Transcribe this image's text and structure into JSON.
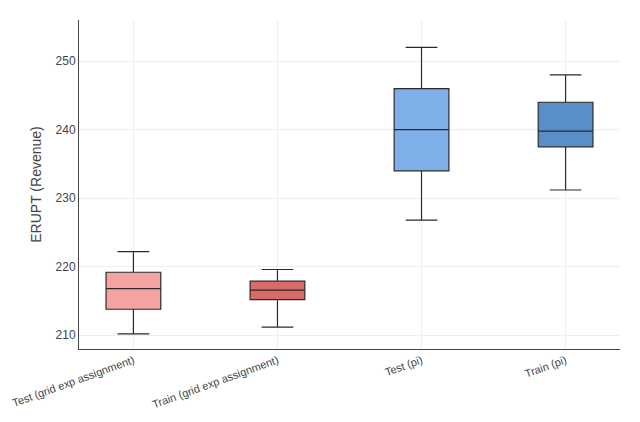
{
  "chart_data": {
    "type": "box",
    "categories": [
      "Test (grid exp assignment)",
      "Train (grid exp assignment)",
      "Test (pi)",
      "Train (pi)"
    ],
    "whisker_low": [
      210.2,
      211.2,
      226.8,
      231.2
    ],
    "q1": [
      213.8,
      215.2,
      234.0,
      237.5
    ],
    "median": [
      216.8,
      216.6,
      240.0,
      239.8
    ],
    "q3": [
      219.2,
      217.9,
      246.0,
      244.0
    ],
    "whisker_high": [
      222.2,
      219.6,
      252.0,
      248.0
    ],
    "colors": [
      "#F4A3A0",
      "#D96A6A",
      "#7FAFE8",
      "#5A8EC8"
    ],
    "ylabel": "ERUPT (Revenue)",
    "ylim": [
      208,
      256
    ],
    "yticks": [
      210,
      220,
      230,
      240,
      250
    ],
    "grid": true
  }
}
